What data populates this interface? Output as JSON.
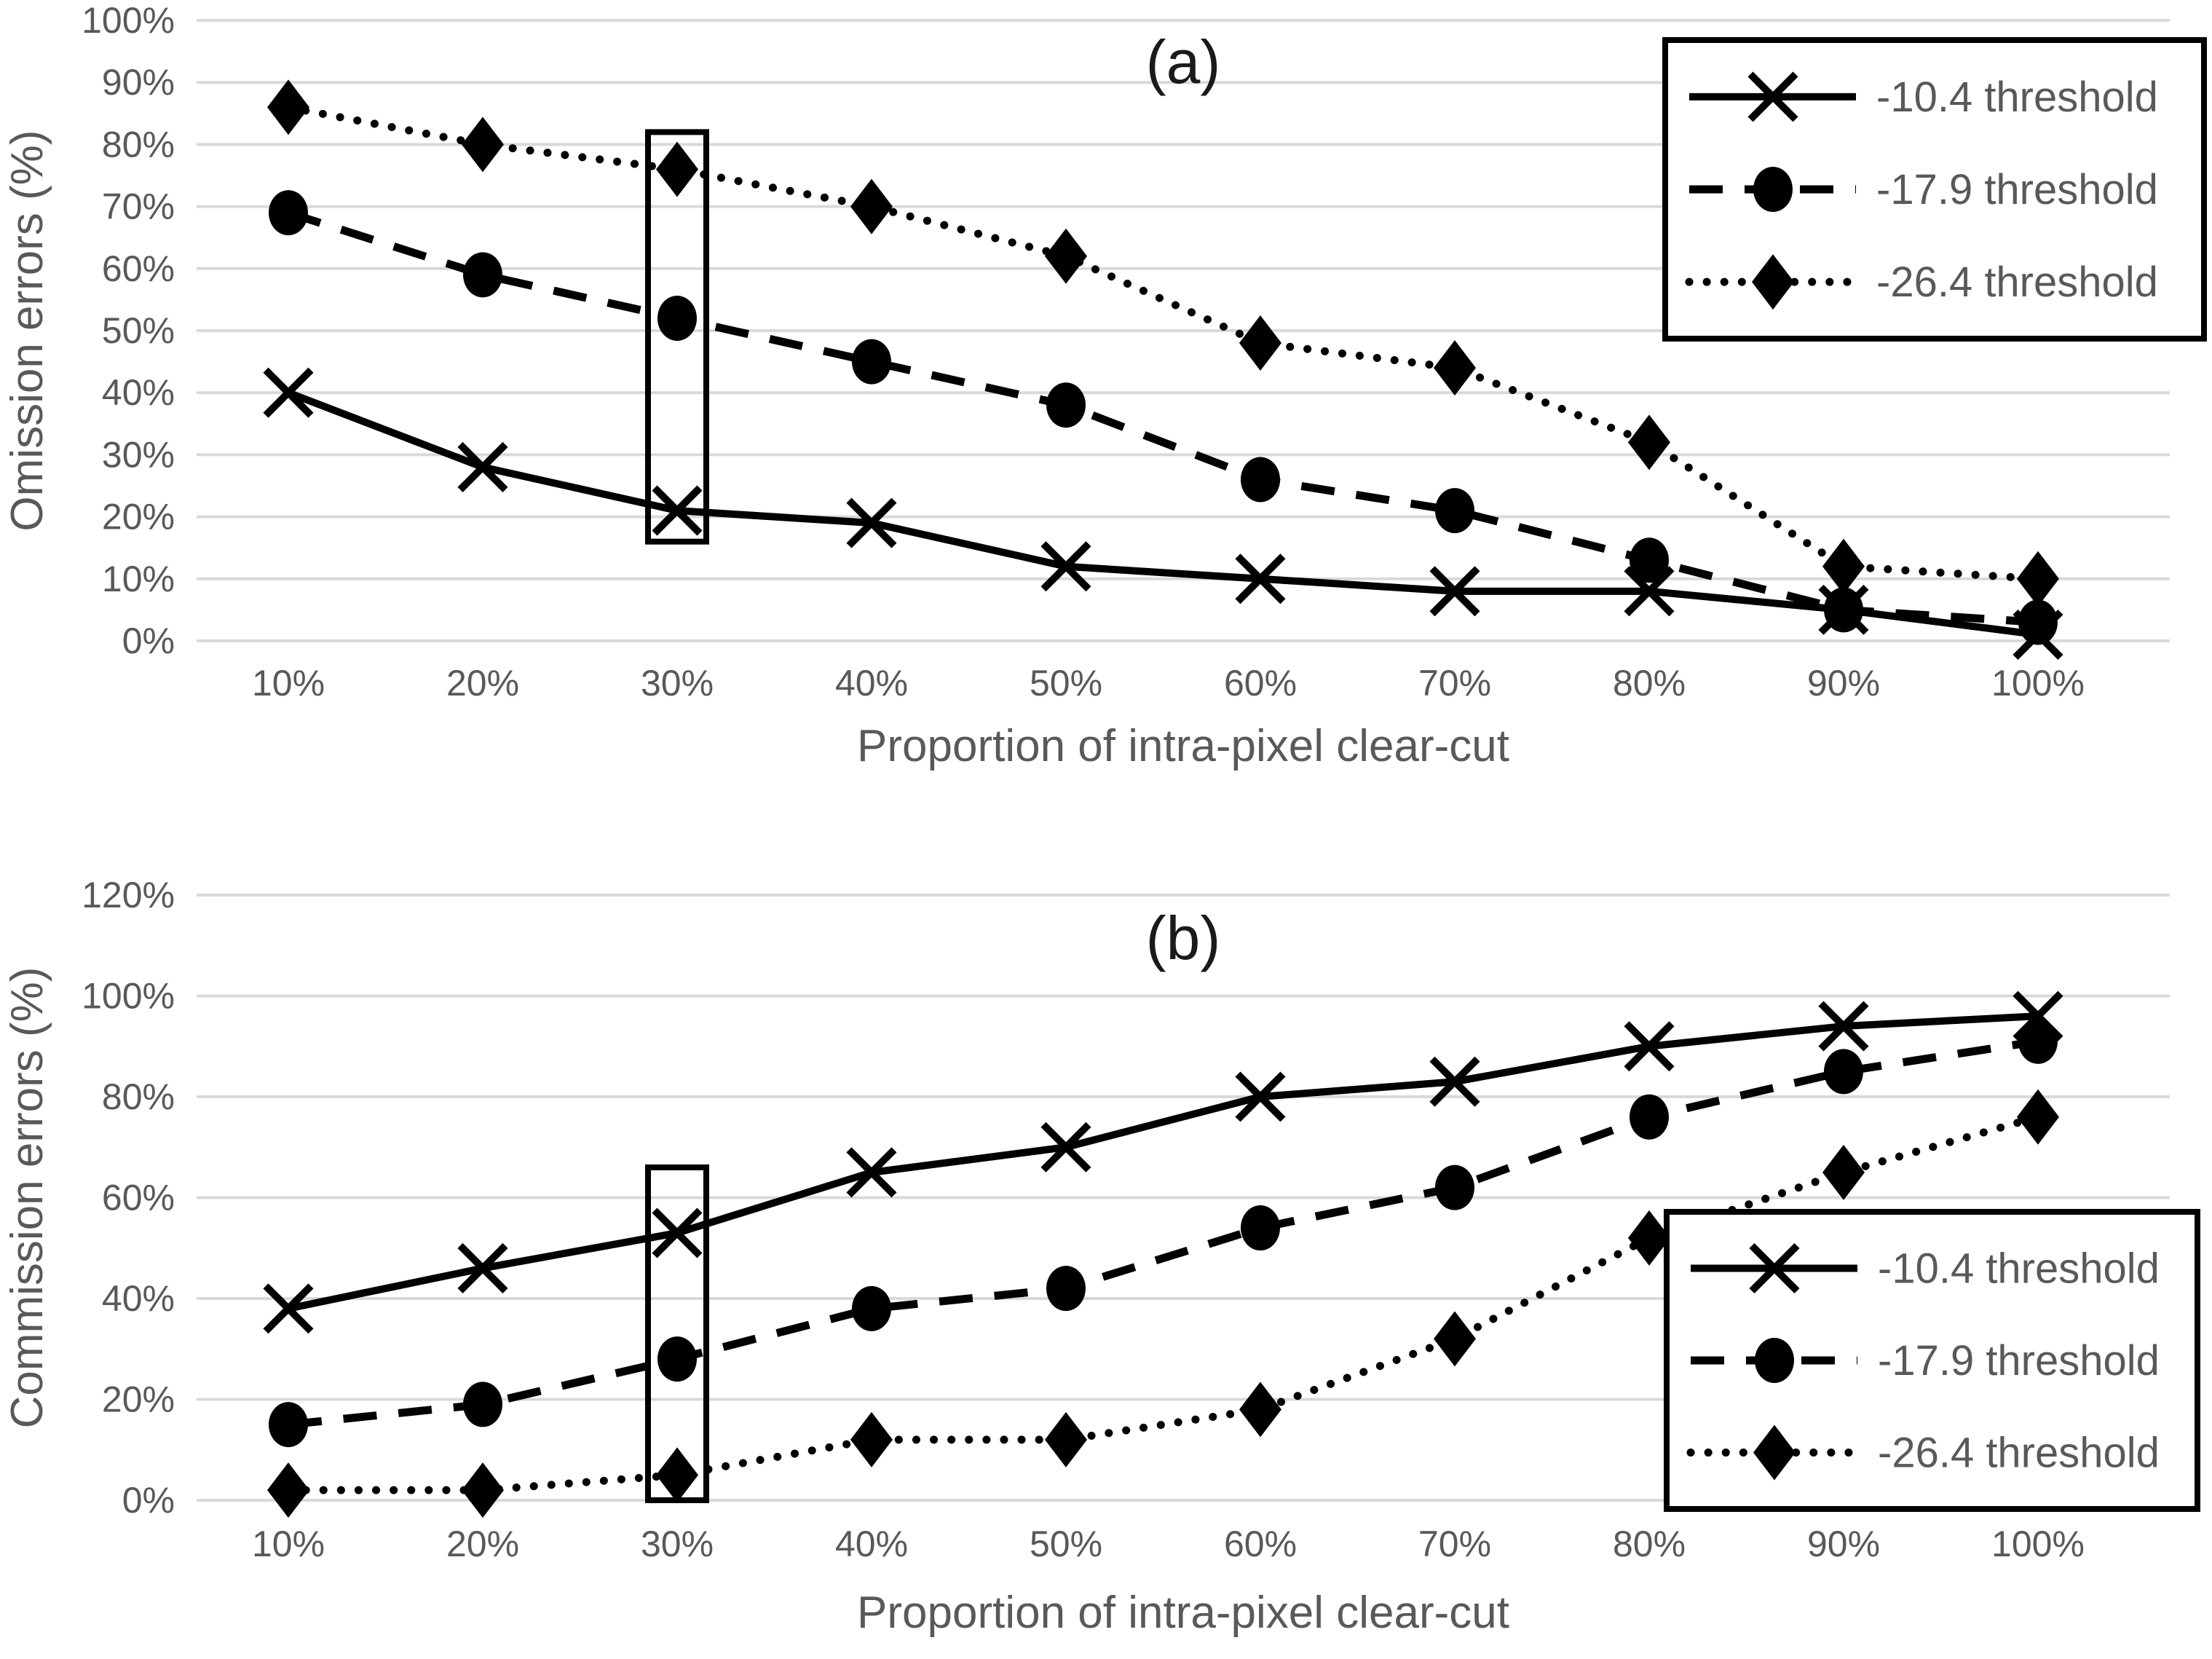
{
  "figure": {
    "background_color": "#ffffff"
  },
  "colors": {
    "series_line": "#000000",
    "gridline": "#d9d9d9",
    "tick_text": "#595959",
    "axis_title_text": "#595959",
    "panel_title_text": "#1a1a1a",
    "legend_text": "#595959",
    "legend_border": "#000000",
    "highlight_border": "#000000",
    "background": "#ffffff"
  },
  "chart_data": [
    {
      "id": "a",
      "type": "line",
      "title": "(a)",
      "ylabel": "Omission errors (%)",
      "xlabel": "Proportion of intra-pixel clear-cut",
      "categories": [
        "10%",
        "20%",
        "30%",
        "40%",
        "50%",
        "60%",
        "70%",
        "80%",
        "90%",
        "100%"
      ],
      "x_values": [
        10,
        20,
        30,
        40,
        50,
        60,
        70,
        80,
        90,
        100
      ],
      "ylim": [
        0,
        100
      ],
      "y_tick_step": 10,
      "y_tick_labels": [
        "0%",
        "10%",
        "20%",
        "30%",
        "40%",
        "50%",
        "60%",
        "70%",
        "80%",
        "90%",
        "100%"
      ],
      "grid": true,
      "legend_position": "top-right",
      "series": [
        {
          "name": "-10.4 threshold",
          "line_style": "solid",
          "marker": "x",
          "values": [
            40,
            28,
            21,
            19,
            12,
            10,
            8,
            8,
            5,
            1
          ]
        },
        {
          "name": "-17.9 threshold",
          "line_style": "dashed",
          "marker": "circle",
          "values": [
            69,
            59,
            52,
            45,
            38,
            26,
            21,
            13,
            5,
            3
          ]
        },
        {
          "name": "-26.4 threshold",
          "line_style": "dotted",
          "marker": "diamond",
          "values": [
            86,
            80,
            76,
            70,
            62,
            48,
            44,
            32,
            12,
            10
          ]
        }
      ],
      "highlight_box": {
        "category": "30%",
        "y_from": 16,
        "y_to": 82
      }
    },
    {
      "id": "b",
      "type": "line",
      "title": "(b)",
      "ylabel": "Commission errors (%)",
      "xlabel": "Proportion of intra-pixel clear-cut",
      "categories": [
        "10%",
        "20%",
        "30%",
        "40%",
        "50%",
        "60%",
        "70%",
        "80%",
        "90%",
        "100%"
      ],
      "x_values": [
        10,
        20,
        30,
        40,
        50,
        60,
        70,
        80,
        90,
        100
      ],
      "ylim": [
        0,
        120
      ],
      "y_tick_step": 20,
      "y_tick_labels": [
        "0%",
        "20%",
        "40%",
        "60%",
        "80%",
        "100%",
        "120%"
      ],
      "grid": true,
      "legend_position": "middle-right",
      "series": [
        {
          "name": "-10.4 threshold",
          "line_style": "solid",
          "marker": "x",
          "values": [
            38,
            46,
            53,
            65,
            70,
            80,
            83,
            90,
            94,
            96
          ]
        },
        {
          "name": "-17.9 threshold",
          "line_style": "dashed",
          "marker": "circle",
          "values": [
            15,
            19,
            28,
            38,
            42,
            54,
            62,
            76,
            85,
            91
          ]
        },
        {
          "name": "-26.4 threshold",
          "line_style": "dotted",
          "marker": "diamond",
          "values": [
            2,
            2,
            5,
            12,
            12,
            18,
            32,
            52,
            65,
            76
          ]
        }
      ],
      "highlight_box": {
        "category": "30%",
        "y_from": 0,
        "y_to": 66
      }
    }
  ]
}
